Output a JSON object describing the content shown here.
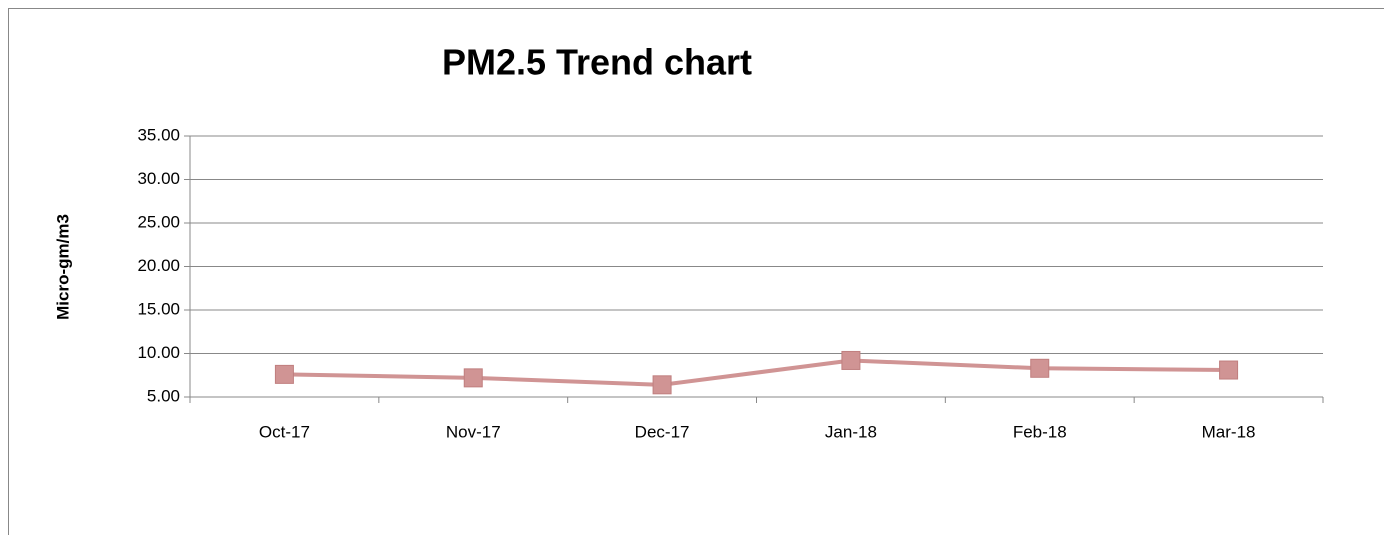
{
  "chart_data": {
    "type": "line",
    "title": "PM2.5 Trend chart",
    "y_label": "Micro-gm/m3",
    "categories": [
      "Oct-17",
      "Nov-17",
      "Dec-17",
      "Jan-18",
      "Feb-18",
      "Mar-18"
    ],
    "series": [
      {
        "name": "PM2.5",
        "color": "#d09494",
        "values": [
          7.6,
          7.2,
          6.4,
          9.2,
          8.3,
          8.1
        ]
      }
    ],
    "ylim": [
      5,
      35
    ],
    "yticks": [
      {
        "value": 5,
        "label": "5.00"
      },
      {
        "value": 10,
        "label": "10.00"
      },
      {
        "value": 15,
        "label": "15.00"
      },
      {
        "value": 20,
        "label": "20.00"
      },
      {
        "value": 25,
        "label": "25.00"
      },
      {
        "value": 30,
        "label": "30.00"
      },
      {
        "value": 35,
        "label": "35.00"
      }
    ],
    "grid": true,
    "legend": false
  }
}
